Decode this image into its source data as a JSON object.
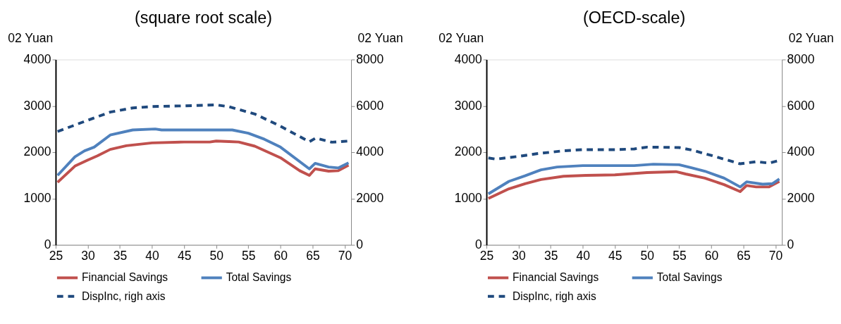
{
  "chart_data": [
    {
      "type": "line",
      "title": "(square root scale)",
      "ylabel": "02 Yuan",
      "y2label": "02 Yuan",
      "xlim": [
        25,
        71
      ],
      "xticks": [
        25,
        30,
        35,
        40,
        45,
        50,
        55,
        60,
        65,
        70
      ],
      "ylim": [
        0,
        4000
      ],
      "yticks": [
        0,
        1000,
        2000,
        3000,
        4000
      ],
      "y2lim": [
        0,
        8000
      ],
      "y2ticks": [
        0,
        2000,
        4000,
        6000,
        8000
      ],
      "grid": false,
      "legend": "bottom",
      "series": [
        {
          "name": "Financial Savings",
          "color": "#c0504d",
          "line_style": "solid",
          "axis": "y",
          "x": [
            25.3,
            28,
            30,
            31.5,
            33.5,
            36,
            40,
            45,
            49,
            50,
            52,
            53.5,
            56,
            60,
            63,
            64.5,
            65.4,
            67.5,
            69,
            70.6
          ],
          "values": [
            1350,
            1700,
            1830,
            1920,
            2060,
            2140,
            2200,
            2220,
            2220,
            2240,
            2230,
            2220,
            2130,
            1880,
            1600,
            1500,
            1640,
            1590,
            1600,
            1720
          ]
        },
        {
          "name": "Total Savings",
          "color": "#4f81bd",
          "line_style": "solid",
          "axis": "y",
          "x": [
            25.3,
            28,
            29.5,
            31,
            33.5,
            37,
            40.5,
            41.5,
            52.5,
            55,
            57.5,
            60,
            64.5,
            65.4,
            67.5,
            69,
            70.6
          ],
          "values": [
            1500,
            1900,
            2030,
            2110,
            2370,
            2480,
            2500,
            2480,
            2480,
            2410,
            2280,
            2110,
            1640,
            1760,
            1680,
            1660,
            1770
          ]
        },
        {
          "name": "DispInc, righ axis",
          "color": "#1f497d",
          "line_style": "dashed",
          "axis": "y2",
          "x": [
            25.3,
            30,
            33.5,
            37,
            40,
            45,
            50,
            52,
            56,
            60,
            64.5,
            65.5,
            68,
            70.6
          ],
          "values": [
            4890,
            5380,
            5730,
            5910,
            5970,
            6000,
            6040,
            5960,
            5650,
            5120,
            4450,
            4610,
            4430,
            4480
          ]
        }
      ]
    },
    {
      "type": "line",
      "title": "(OECD-scale)",
      "ylabel": "02 Yuan",
      "y2label": "02 Yuan",
      "xlim": [
        25,
        71
      ],
      "xticks": [
        25,
        30,
        35,
        40,
        45,
        50,
        55,
        60,
        65,
        70
      ],
      "ylim": [
        0,
        4000
      ],
      "yticks": [
        0,
        1000,
        2000,
        3000,
        4000
      ],
      "y2lim": [
        0,
        8000
      ],
      "y2ticks": [
        0,
        2000,
        4000,
        6000,
        8000
      ],
      "grid": false,
      "legend": "bottom",
      "series": [
        {
          "name": "Financial Savings",
          "color": "#c0504d",
          "line_style": "solid",
          "axis": "y",
          "x": [
            25.3,
            28.5,
            31,
            33.5,
            37,
            40.5,
            45,
            50,
            54.5,
            56,
            59,
            62,
            64.5,
            65.5,
            67,
            69,
            70.6
          ],
          "values": [
            1000,
            1210,
            1320,
            1410,
            1480,
            1500,
            1510,
            1560,
            1580,
            1530,
            1440,
            1300,
            1150,
            1280,
            1250,
            1250,
            1370
          ]
        },
        {
          "name": "Total Savings",
          "color": "#4f81bd",
          "line_style": "solid",
          "axis": "y",
          "x": [
            25.3,
            28.5,
            31,
            33.5,
            36,
            40,
            48,
            51,
            55,
            57,
            59,
            62,
            64.5,
            65.5,
            68,
            69.5,
            70.6
          ],
          "values": [
            1100,
            1370,
            1490,
            1620,
            1680,
            1710,
            1710,
            1740,
            1730,
            1660,
            1590,
            1440,
            1250,
            1360,
            1310,
            1320,
            1420
          ]
        },
        {
          "name": "DispInc, righ axis",
          "color": "#1f497d",
          "line_style": "dashed",
          "axis": "y2",
          "x": [
            25.3,
            26.5,
            30,
            33,
            37,
            40,
            45,
            48,
            50,
            55,
            57,
            60,
            64.5,
            67,
            69,
            70.6
          ],
          "values": [
            3750,
            3700,
            3820,
            3940,
            4060,
            4110,
            4110,
            4140,
            4220,
            4200,
            4090,
            3860,
            3500,
            3590,
            3530,
            3640
          ]
        }
      ]
    }
  ]
}
